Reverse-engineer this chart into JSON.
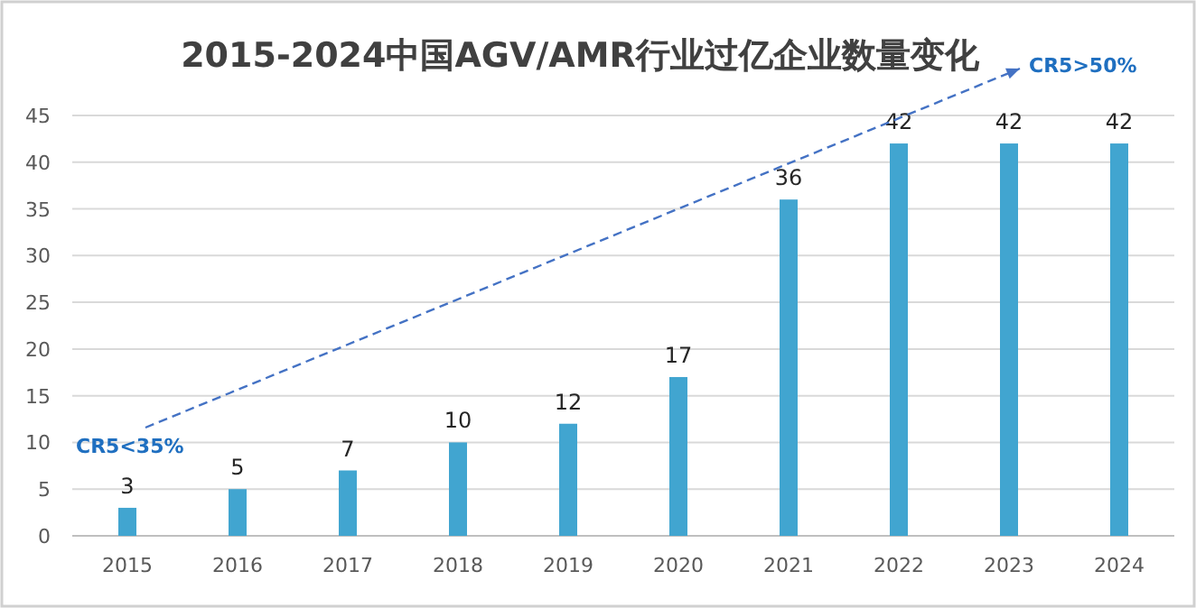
{
  "chart_data": {
    "type": "bar",
    "title": "2015-2024中国AGV/AMR行业过亿企业数量变化",
    "categories": [
      "2015",
      "2016",
      "2017",
      "2018",
      "2019",
      "2020",
      "2021",
      "2022",
      "2023",
      "2024"
    ],
    "values": [
      3,
      5,
      7,
      10,
      12,
      17,
      36,
      42,
      42,
      42
    ],
    "color": "#41a5d0",
    "ylim": [
      0,
      45
    ],
    "yticks": [
      0,
      5,
      10,
      15,
      20,
      25,
      30,
      35,
      40,
      45
    ],
    "grid": "y",
    "data_labels": true,
    "annotations": [
      "CR5<35%",
      "CR5>50%"
    ]
  }
}
